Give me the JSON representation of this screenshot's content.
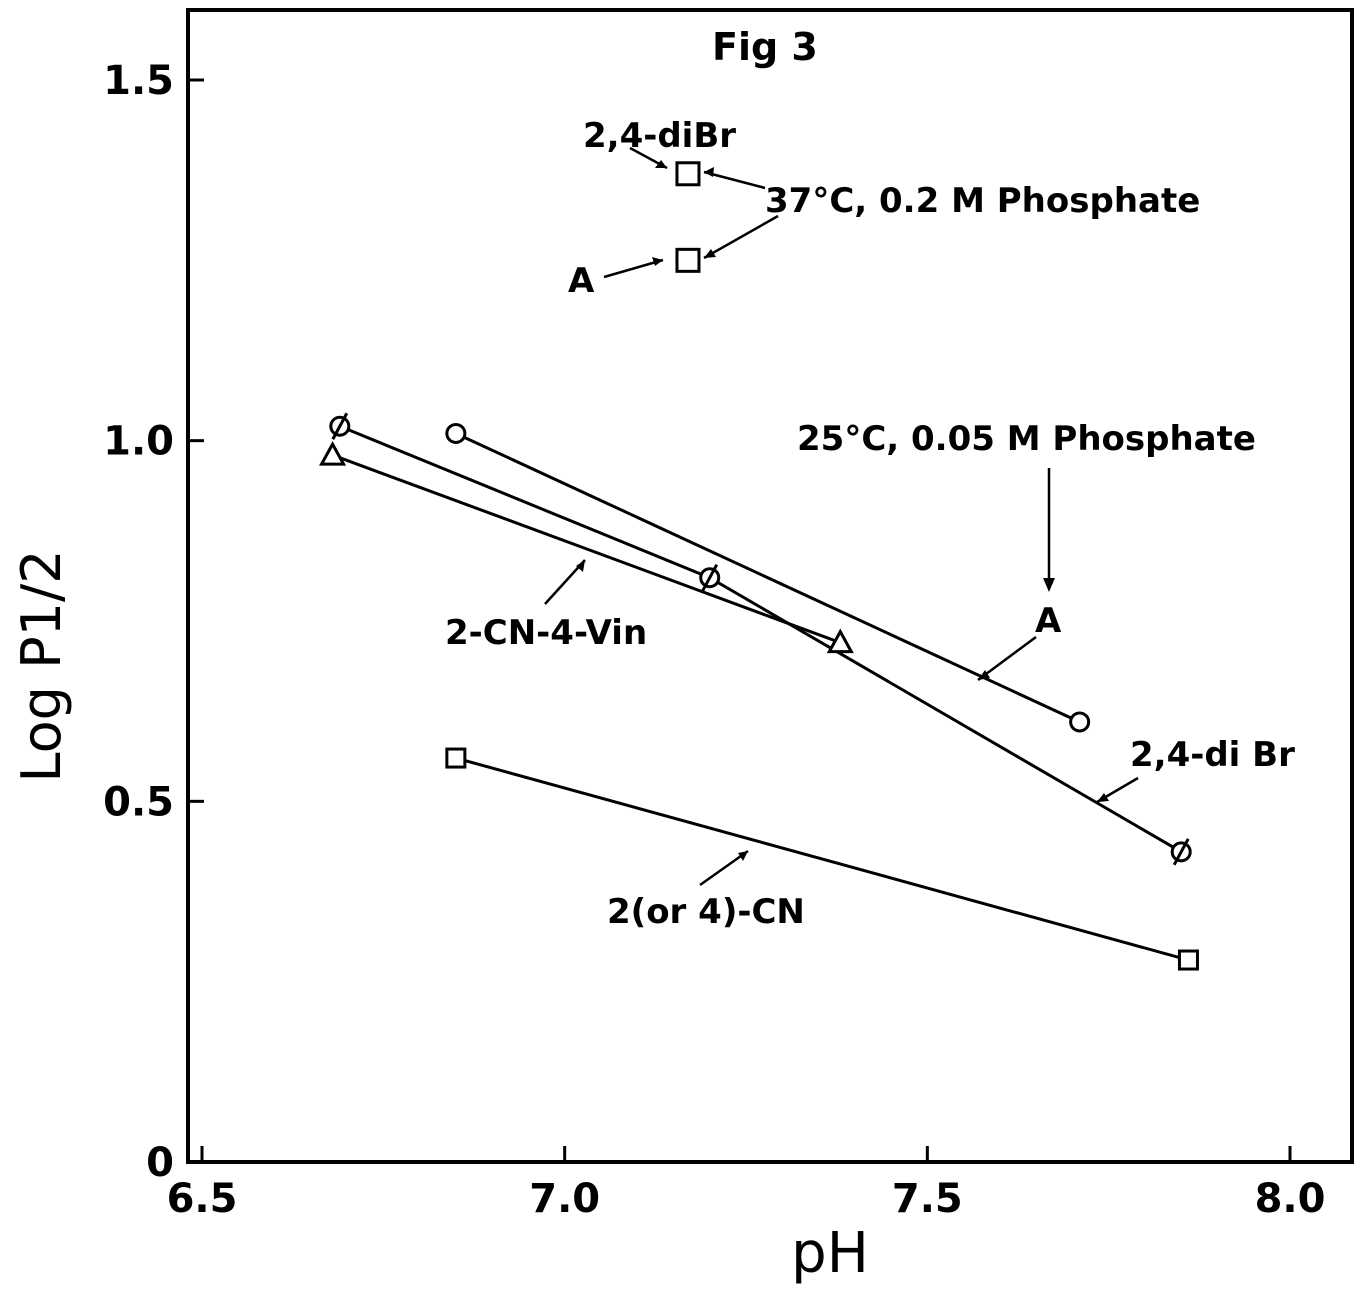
{
  "chart_data": {
    "type": "line",
    "title": "Fig 3",
    "xlabel": "pH",
    "ylabel": "Log P1/2",
    "xlim": [
      6.5,
      8.0
    ],
    "ylim": [
      0,
      1.5
    ],
    "x_ticks": [
      "6.5",
      "7.0",
      "7.5",
      "8.0"
    ],
    "y_ticks": [
      "0",
      "0.5",
      "1.0",
      "1.5"
    ],
    "grid": false,
    "legend": "none",
    "annotations": [
      "37°C, 0.2 M Phosphate",
      "25°C, 0.05 M Phosphate",
      "2,4-diBr",
      "A",
      "2-CN-4-Vin",
      "A",
      "2,4-di Br",
      "2(or 4)-CN"
    ],
    "series": [
      {
        "marker": "circle",
        "points": [
          [
            6.85,
            1.01
          ],
          [
            7.71,
            0.61
          ]
        ]
      },
      {
        "marker": "slashed-circle",
        "points": [
          [
            6.69,
            1.02
          ],
          [
            7.2,
            0.81
          ],
          [
            7.85,
            0.43
          ]
        ]
      },
      {
        "marker": "triangle",
        "points": [
          [
            6.68,
            0.98
          ],
          [
            7.38,
            0.72
          ]
        ]
      },
      {
        "marker": "square",
        "points": [
          [
            6.85,
            0.56
          ],
          [
            7.86,
            0.28
          ]
        ]
      },
      {
        "marker": "square",
        "points": [
          [
            7.17,
            1.37
          ]
        ]
      },
      {
        "marker": "square",
        "points": [
          [
            7.17,
            1.25
          ]
        ]
      }
    ]
  }
}
